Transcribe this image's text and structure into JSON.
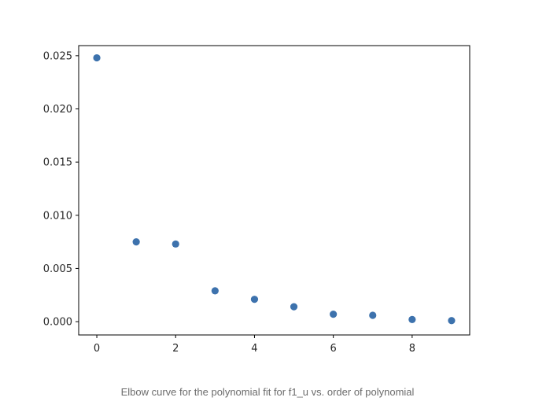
{
  "caption": "Elbow curve for the polynomial fit for f1_u vs. order of polynomial",
  "chart_data": {
    "type": "scatter",
    "title": "",
    "xlabel": "",
    "ylabel": "",
    "x": [
      0,
      1,
      2,
      3,
      4,
      5,
      6,
      7,
      8,
      9
    ],
    "y": [
      0.0248,
      0.0075,
      0.0073,
      0.0029,
      0.0021,
      0.0014,
      0.0007,
      0.0006,
      0.0002,
      0.0001
    ],
    "xlim": [
      -0.46,
      9.46
    ],
    "ylim": [
      -0.00125,
      0.02595
    ],
    "xticks": [
      0,
      2,
      4,
      6,
      8
    ],
    "xtick_labels": [
      "0",
      "2",
      "4",
      "6",
      "8"
    ],
    "yticks": [
      0.0,
      0.005,
      0.01,
      0.015,
      0.02,
      0.025
    ],
    "ytick_labels": [
      "0.000",
      "0.005",
      "0.010",
      "0.015",
      "0.020",
      "0.025"
    ],
    "grid": false,
    "marker_color": "#3d72ad",
    "axis_color": "#000000"
  }
}
